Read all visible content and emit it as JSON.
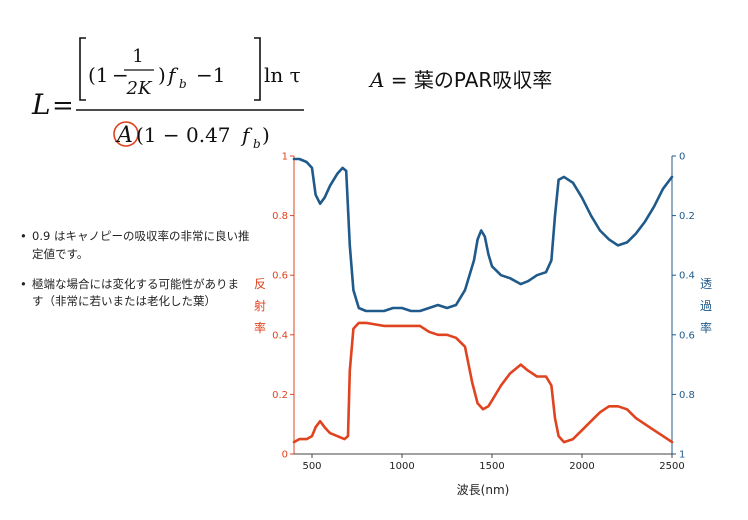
{
  "formula": {
    "lhs": "L",
    "one_a": "(1",
    "minus_a": "−",
    "frac_num": "1",
    "frac_den": "2K",
    "close_paren": ")",
    "f": "f",
    "sub_b": "b",
    "minus_one": "−1",
    "ln_tau": "ln τ",
    "den_A": "A",
    "den_rest": "(1 − 0.47",
    "den_close": ")"
  },
  "definition": {
    "var": "A",
    "text": " = 葉のPAR吸収率"
  },
  "bullets": [
    {
      "text": "0.9 はキャノピーの吸収率の非常に良い推定値です。"
    },
    {
      "text": "極端な場合には変化する可能性があります（非常に若いまたは老化した葉）"
    }
  ],
  "colors": {
    "reflectance": "#e0431f",
    "transmittance": "#1f5a8a"
  },
  "chart_data": {
    "type": "line",
    "xlabel": "波長(nm)",
    "ylabel_left": "反射率",
    "ylabel_right": "透過率",
    "xlim": [
      400,
      2500
    ],
    "ylim_left": [
      0,
      1
    ],
    "ylim_right_inverted": [
      0,
      1
    ],
    "x_ticks": [
      "500",
      "1000",
      "1500",
      "2000",
      "2500"
    ],
    "left_ticks": [
      "0",
      "0.2",
      "0.4",
      "0.6",
      "0.8",
      "1"
    ],
    "right_ticks": [
      "0",
      "0.2",
      "0.4",
      "0.6",
      "0.8",
      "1"
    ],
    "series": [
      {
        "axis": "left",
        "x": [
          400,
          430,
          470,
          500,
          520,
          545,
          570,
          600,
          640,
          680,
          700,
          710,
          730,
          760,
          800,
          900,
          1000,
          1100,
          1150,
          1200,
          1250,
          1300,
          1350,
          1390,
          1420,
          1450,
          1480,
          1500,
          1550,
          1600,
          1660,
          1700,
          1750,
          1800,
          1830,
          1850,
          1870,
          1900,
          1950,
          2000,
          2050,
          2100,
          2150,
          2200,
          2250,
          2300,
          2350,
          2400,
          2450,
          2500
        ],
        "values": [
          0.04,
          0.05,
          0.05,
          0.06,
          0.09,
          0.11,
          0.09,
          0.07,
          0.06,
          0.05,
          0.06,
          0.28,
          0.42,
          0.44,
          0.44,
          0.43,
          0.43,
          0.43,
          0.41,
          0.4,
          0.4,
          0.39,
          0.36,
          0.24,
          0.17,
          0.15,
          0.16,
          0.18,
          0.23,
          0.27,
          0.3,
          0.28,
          0.26,
          0.26,
          0.23,
          0.12,
          0.06,
          0.04,
          0.05,
          0.08,
          0.11,
          0.14,
          0.16,
          0.16,
          0.15,
          0.12,
          0.1,
          0.08,
          0.06,
          0.04
        ]
      },
      {
        "axis": "right",
        "x": [
          400,
          430,
          470,
          500,
          520,
          545,
          570,
          600,
          640,
          670,
          690,
          710,
          730,
          760,
          800,
          850,
          900,
          950,
          1000,
          1050,
          1100,
          1150,
          1200,
          1250,
          1300,
          1350,
          1400,
          1420,
          1440,
          1460,
          1480,
          1500,
          1550,
          1600,
          1660,
          1700,
          1750,
          1800,
          1830,
          1850,
          1870,
          1900,
          1950,
          2000,
          2050,
          2100,
          2150,
          2200,
          2250,
          2300,
          2350,
          2400,
          2450,
          2500
        ],
        "values": [
          0.01,
          0.01,
          0.02,
          0.04,
          0.13,
          0.16,
          0.14,
          0.1,
          0.06,
          0.04,
          0.05,
          0.3,
          0.45,
          0.51,
          0.52,
          0.52,
          0.52,
          0.51,
          0.51,
          0.52,
          0.52,
          0.51,
          0.5,
          0.51,
          0.5,
          0.45,
          0.35,
          0.28,
          0.25,
          0.27,
          0.33,
          0.37,
          0.4,
          0.41,
          0.43,
          0.42,
          0.4,
          0.39,
          0.35,
          0.2,
          0.08,
          0.07,
          0.09,
          0.14,
          0.2,
          0.25,
          0.28,
          0.3,
          0.29,
          0.26,
          0.22,
          0.17,
          0.11,
          0.07
        ]
      }
    ]
  }
}
